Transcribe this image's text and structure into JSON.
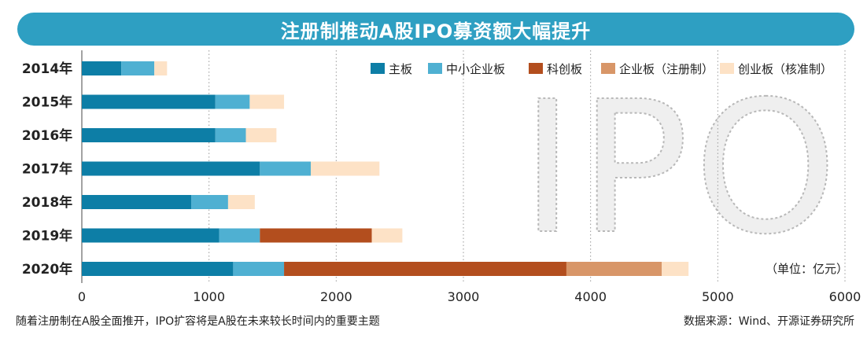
{
  "title": "注册制推动A股IPO募资额大幅提升",
  "footnote": "随着注册制在A股全面推开，IPO扩容将是A股在未来较长时间内的重要主题",
  "source": "数据来源：Wind、开源证券研究所",
  "watermark": "IPO",
  "colors": {
    "title_bar": "#2e9fc2",
    "主板": "#0d7ea6",
    "中小企业板": "#4fb0d2",
    "科创板": "#b34e1e",
    "企业板（注册制）": "#d89668",
    "创业板（核准制）": "#fde2c6"
  },
  "chart_data": {
    "type": "bar",
    "orientation": "horizontal",
    "stacked": true,
    "categories": [
      "2014年",
      "2015年",
      "2016年",
      "2017年",
      "2018年",
      "2019年",
      "2020年"
    ],
    "series": [
      {
        "name": "主板",
        "values": [
          310,
          1050,
          1050,
          1400,
          860,
          1080,
          1190
        ]
      },
      {
        "name": "中小企业板",
        "values": [
          260,
          270,
          240,
          400,
          290,
          320,
          400
        ]
      },
      {
        "name": "科创板",
        "values": [
          0,
          0,
          0,
          0,
          0,
          880,
          2220
        ]
      },
      {
        "name": "企业板（注册制）",
        "values": [
          0,
          0,
          0,
          0,
          0,
          0,
          750
        ]
      },
      {
        "name": "创业板（核准制）",
        "values": [
          100,
          270,
          240,
          540,
          210,
          240,
          210
        ]
      }
    ],
    "xlim": [
      0,
      6000
    ],
    "xticks": [
      0,
      1000,
      2000,
      3000,
      4000,
      5000,
      6000
    ],
    "unit_label": "（单位：亿元）",
    "legend_position": "top-right",
    "grid": "vertical dotted"
  }
}
